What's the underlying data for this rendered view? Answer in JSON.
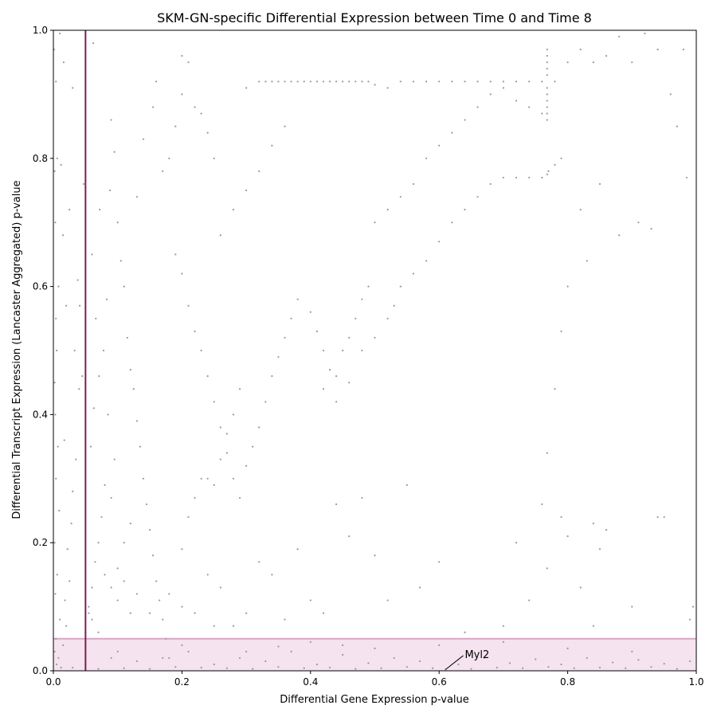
{
  "chart_data": {
    "type": "scatter",
    "title": "SKM-GN-specific Differential Expression between Time 0 and Time 8",
    "xlabel": "Differential Gene Expression p-value",
    "ylabel": "Differential Transcript Expression (Lancaster Aggregated) p-value",
    "xlim": [
      0,
      1
    ],
    "ylim": [
      0,
      1
    ],
    "xticks": [
      {
        "value": 0.0,
        "label": "0.0"
      },
      {
        "value": 0.2,
        "label": "0.2"
      },
      {
        "value": 0.4,
        "label": "0.4"
      },
      {
        "value": 0.6,
        "label": "0.6"
      },
      {
        "value": 0.8,
        "label": "0.8"
      },
      {
        "value": 1.0,
        "label": "1.0"
      }
    ],
    "yticks": [
      {
        "value": 0.0,
        "label": "0.0"
      },
      {
        "value": 0.2,
        "label": "0.2"
      },
      {
        "value": 0.4,
        "label": "0.4"
      },
      {
        "value": 0.6,
        "label": "0.6"
      },
      {
        "value": 0.8,
        "label": "0.8"
      },
      {
        "value": 1.0,
        "label": "1.0"
      }
    ],
    "grid": false,
    "point_color": "#999999",
    "threshold_line": {
      "axis": "x",
      "value": 0.05,
      "color": "#7b1f4f"
    },
    "threshold_band": {
      "axis": "y",
      "from": 0.0,
      "to": 0.05,
      "fill": "#f5e3ef",
      "edge": "#d9a6c6"
    },
    "annotations": [
      {
        "label": "Myl2",
        "x": 0.61,
        "y": 0.002,
        "text_x": 0.64,
        "text_y": 0.02
      }
    ],
    "points": [
      [
        0.005,
        0.01
      ],
      [
        0.002,
        0.03
      ],
      [
        0.008,
        0.02
      ],
      [
        0.004,
        0.05
      ],
      [
        0.01,
        0.08
      ],
      [
        0.003,
        0.12
      ],
      [
        0.006,
        0.15
      ],
      [
        0.002,
        0.2
      ],
      [
        0.009,
        0.25
      ],
      [
        0.004,
        0.3
      ],
      [
        0.007,
        0.35
      ],
      [
        0.003,
        0.4
      ],
      [
        0.002,
        0.45
      ],
      [
        0.005,
        0.5
      ],
      [
        0.004,
        0.55
      ],
      [
        0.008,
        0.6
      ],
      [
        0.003,
        0.7
      ],
      [
        0.002,
        0.78
      ],
      [
        0.006,
        0.8
      ],
      [
        0.004,
        0.92
      ],
      [
        0.001,
        0.97
      ],
      [
        0.012,
        0.005
      ],
      [
        0.015,
        0.04
      ],
      [
        0.02,
        0.07
      ],
      [
        0.018,
        0.11
      ],
      [
        0.025,
        0.14
      ],
      [
        0.022,
        0.19
      ],
      [
        0.028,
        0.23
      ],
      [
        0.03,
        0.28
      ],
      [
        0.035,
        0.33
      ],
      [
        0.017,
        0.36
      ],
      [
        0.04,
        0.44
      ],
      [
        0.033,
        0.5
      ],
      [
        0.045,
        0.46
      ],
      [
        0.02,
        0.57
      ],
      [
        0.038,
        0.61
      ],
      [
        0.015,
        0.68
      ],
      [
        0.025,
        0.72
      ],
      [
        0.012,
        0.79
      ],
      [
        0.03,
        0.91
      ],
      [
        0.041,
        0.57
      ],
      [
        0.047,
        0.76
      ],
      [
        0.016,
        0.95
      ],
      [
        0.01,
        0.995
      ],
      [
        0.05,
        0.06
      ],
      [
        0.055,
        0.09
      ],
      [
        0.06,
        0.13
      ],
      [
        0.065,
        0.17
      ],
      [
        0.07,
        0.2
      ],
      [
        0.075,
        0.24
      ],
      [
        0.08,
        0.29
      ],
      [
        0.058,
        0.35
      ],
      [
        0.063,
        0.41
      ],
      [
        0.071,
        0.46
      ],
      [
        0.078,
        0.5
      ],
      [
        0.066,
        0.55
      ],
      [
        0.083,
        0.58
      ],
      [
        0.06,
        0.65
      ],
      [
        0.072,
        0.72
      ],
      [
        0.088,
        0.75
      ],
      [
        0.062,
        0.98
      ],
      [
        0.09,
        0.86
      ],
      [
        0.095,
        0.81
      ],
      [
        0.1,
        0.7
      ],
      [
        0.105,
        0.64
      ],
      [
        0.11,
        0.6
      ],
      [
        0.115,
        0.52
      ],
      [
        0.12,
        0.47
      ],
      [
        0.125,
        0.44
      ],
      [
        0.13,
        0.39
      ],
      [
        0.135,
        0.35
      ],
      [
        0.14,
        0.3
      ],
      [
        0.145,
        0.26
      ],
      [
        0.15,
        0.22
      ],
      [
        0.155,
        0.18
      ],
      [
        0.16,
        0.14
      ],
      [
        0.165,
        0.11
      ],
      [
        0.17,
        0.08
      ],
      [
        0.175,
        0.05
      ],
      [
        0.18,
        0.02
      ],
      [
        0.1,
        0.16
      ],
      [
        0.11,
        0.2
      ],
      [
        0.12,
        0.23
      ],
      [
        0.09,
        0.27
      ],
      [
        0.095,
        0.33
      ],
      [
        0.085,
        0.4
      ],
      [
        0.13,
        0.74
      ],
      [
        0.14,
        0.83
      ],
      [
        0.155,
        0.88
      ],
      [
        0.16,
        0.92
      ],
      [
        0.17,
        0.78
      ],
      [
        0.18,
        0.8
      ],
      [
        0.19,
        0.85
      ],
      [
        0.2,
        0.9
      ],
      [
        0.2,
        0.96
      ],
      [
        0.21,
        0.95
      ],
      [
        0.22,
        0.88
      ],
      [
        0.23,
        0.87
      ],
      [
        0.24,
        0.84
      ],
      [
        0.25,
        0.8
      ],
      [
        0.19,
        0.65
      ],
      [
        0.2,
        0.62
      ],
      [
        0.21,
        0.57
      ],
      [
        0.22,
        0.53
      ],
      [
        0.23,
        0.5
      ],
      [
        0.24,
        0.46
      ],
      [
        0.25,
        0.42
      ],
      [
        0.26,
        0.38
      ],
      [
        0.27,
        0.34
      ],
      [
        0.28,
        0.3
      ],
      [
        0.29,
        0.27
      ],
      [
        0.3,
        0.32
      ],
      [
        0.31,
        0.35
      ],
      [
        0.32,
        0.38
      ],
      [
        0.33,
        0.42
      ],
      [
        0.34,
        0.46
      ],
      [
        0.35,
        0.49
      ],
      [
        0.36,
        0.52
      ],
      [
        0.37,
        0.55
      ],
      [
        0.38,
        0.58
      ],
      [
        0.2,
        0.19
      ],
      [
        0.21,
        0.24
      ],
      [
        0.22,
        0.27
      ],
      [
        0.23,
        0.3
      ],
      [
        0.24,
        0.3
      ],
      [
        0.25,
        0.29
      ],
      [
        0.26,
        0.33
      ],
      [
        0.27,
        0.37
      ],
      [
        0.28,
        0.4
      ],
      [
        0.29,
        0.44
      ],
      [
        0.26,
        0.68
      ],
      [
        0.28,
        0.72
      ],
      [
        0.3,
        0.75
      ],
      [
        0.32,
        0.78
      ],
      [
        0.34,
        0.82
      ],
      [
        0.36,
        0.85
      ],
      [
        0.3,
        0.91
      ],
      [
        0.32,
        0.92
      ],
      [
        0.33,
        0.92
      ],
      [
        0.34,
        0.92
      ],
      [
        0.35,
        0.92
      ],
      [
        0.36,
        0.92
      ],
      [
        0.37,
        0.92
      ],
      [
        0.38,
        0.92
      ],
      [
        0.39,
        0.92
      ],
      [
        0.4,
        0.92
      ],
      [
        0.41,
        0.92
      ],
      [
        0.42,
        0.92
      ],
      [
        0.43,
        0.92
      ],
      [
        0.44,
        0.92
      ],
      [
        0.45,
        0.92
      ],
      [
        0.46,
        0.92
      ],
      [
        0.47,
        0.92
      ],
      [
        0.48,
        0.92
      ],
      [
        0.49,
        0.92
      ],
      [
        0.5,
        0.915
      ],
      [
        0.52,
        0.91
      ],
      [
        0.54,
        0.92
      ],
      [
        0.56,
        0.92
      ],
      [
        0.58,
        0.92
      ],
      [
        0.6,
        0.92
      ],
      [
        0.62,
        0.92
      ],
      [
        0.64,
        0.92
      ],
      [
        0.66,
        0.92
      ],
      [
        0.68,
        0.92
      ],
      [
        0.7,
        0.92
      ],
      [
        0.72,
        0.92
      ],
      [
        0.74,
        0.92
      ],
      [
        0.76,
        0.92
      ],
      [
        0.78,
        0.92
      ],
      [
        0.4,
        0.56
      ],
      [
        0.41,
        0.53
      ],
      [
        0.42,
        0.5
      ],
      [
        0.43,
        0.47
      ],
      [
        0.44,
        0.46
      ],
      [
        0.45,
        0.5
      ],
      [
        0.46,
        0.52
      ],
      [
        0.47,
        0.55
      ],
      [
        0.48,
        0.58
      ],
      [
        0.49,
        0.6
      ],
      [
        0.42,
        0.44
      ],
      [
        0.44,
        0.42
      ],
      [
        0.46,
        0.45
      ],
      [
        0.48,
        0.5
      ],
      [
        0.5,
        0.52
      ],
      [
        0.52,
        0.55
      ],
      [
        0.53,
        0.57
      ],
      [
        0.54,
        0.6
      ],
      [
        0.56,
        0.62
      ],
      [
        0.58,
        0.64
      ],
      [
        0.6,
        0.67
      ],
      [
        0.62,
        0.7
      ],
      [
        0.64,
        0.72
      ],
      [
        0.66,
        0.74
      ],
      [
        0.68,
        0.76
      ],
      [
        0.7,
        0.77
      ],
      [
        0.72,
        0.77
      ],
      [
        0.74,
        0.77
      ],
      [
        0.76,
        0.77
      ],
      [
        0.77,
        0.78
      ],
      [
        0.78,
        0.79
      ],
      [
        0.79,
        0.8
      ],
      [
        0.5,
        0.7
      ],
      [
        0.52,
        0.72
      ],
      [
        0.54,
        0.74
      ],
      [
        0.56,
        0.76
      ],
      [
        0.58,
        0.8
      ],
      [
        0.6,
        0.82
      ],
      [
        0.62,
        0.84
      ],
      [
        0.64,
        0.86
      ],
      [
        0.66,
        0.88
      ],
      [
        0.68,
        0.9
      ],
      [
        0.7,
        0.91
      ],
      [
        0.72,
        0.89
      ],
      [
        0.74,
        0.88
      ],
      [
        0.76,
        0.87
      ],
      [
        0.768,
        0.86
      ],
      [
        0.768,
        0.87
      ],
      [
        0.768,
        0.88
      ],
      [
        0.768,
        0.89
      ],
      [
        0.768,
        0.9
      ],
      [
        0.768,
        0.91
      ],
      [
        0.768,
        0.93
      ],
      [
        0.768,
        0.94
      ],
      [
        0.768,
        0.95
      ],
      [
        0.768,
        0.96
      ],
      [
        0.768,
        0.97
      ],
      [
        0.768,
        0.775
      ],
      [
        0.768,
        0.34
      ],
      [
        0.768,
        0.16
      ],
      [
        0.8,
        0.95
      ],
      [
        0.82,
        0.97
      ],
      [
        0.84,
        0.95
      ],
      [
        0.86,
        0.96
      ],
      [
        0.88,
        0.99
      ],
      [
        0.9,
        0.95
      ],
      [
        0.92,
        0.995
      ],
      [
        0.94,
        0.97
      ],
      [
        0.96,
        0.9
      ],
      [
        0.98,
        0.97
      ],
      [
        0.85,
        0.76
      ],
      [
        0.88,
        0.68
      ],
      [
        0.91,
        0.7
      ],
      [
        0.93,
        0.69
      ],
      [
        0.97,
        0.85
      ],
      [
        0.985,
        0.77
      ],
      [
        0.8,
        0.6
      ],
      [
        0.79,
        0.53
      ],
      [
        0.82,
        0.72
      ],
      [
        0.83,
        0.64
      ],
      [
        0.78,
        0.44
      ],
      [
        0.79,
        0.24
      ],
      [
        0.8,
        0.21
      ],
      [
        0.82,
        0.13
      ],
      [
        0.84,
        0.23
      ],
      [
        0.86,
        0.22
      ],
      [
        0.9,
        0.1
      ],
      [
        0.94,
        0.24
      ],
      [
        0.95,
        0.24
      ],
      [
        0.99,
        0.08
      ],
      [
        0.995,
        0.1
      ],
      [
        0.85,
        0.19
      ],
      [
        0.84,
        0.07
      ],
      [
        0.76,
        0.26
      ],
      [
        0.74,
        0.11
      ],
      [
        0.72,
        0.2
      ],
      [
        0.7,
        0.07
      ],
      [
        0.64,
        0.06
      ],
      [
        0.6,
        0.17
      ],
      [
        0.57,
        0.13
      ],
      [
        0.55,
        0.29
      ],
      [
        0.52,
        0.11
      ],
      [
        0.5,
        0.18
      ],
      [
        0.48,
        0.27
      ],
      [
        0.46,
        0.21
      ],
      [
        0.44,
        0.26
      ],
      [
        0.42,
        0.09
      ],
      [
        0.4,
        0.11
      ],
      [
        0.38,
        0.19
      ],
      [
        0.36,
        0.08
      ],
      [
        0.34,
        0.15
      ],
      [
        0.32,
        0.17
      ],
      [
        0.3,
        0.09
      ],
      [
        0.28,
        0.07
      ],
      [
        0.26,
        0.13
      ],
      [
        0.25,
        0.07
      ],
      [
        0.24,
        0.15
      ],
      [
        0.22,
        0.09
      ],
      [
        0.2,
        0.1
      ],
      [
        0.18,
        0.12
      ],
      [
        0.15,
        0.09
      ],
      [
        0.13,
        0.12
      ],
      [
        0.12,
        0.09
      ],
      [
        0.11,
        0.14
      ],
      [
        0.1,
        0.11
      ],
      [
        0.09,
        0.13
      ],
      [
        0.08,
        0.15
      ],
      [
        0.07,
        0.06
      ],
      [
        0.06,
        0.08
      ],
      [
        0.055,
        0.1
      ],
      [
        0.03,
        0.005
      ],
      [
        0.05,
        0.01
      ],
      [
        0.07,
        0.003
      ],
      [
        0.09,
        0.02
      ],
      [
        0.11,
        0.004
      ],
      [
        0.13,
        0.015
      ],
      [
        0.15,
        0.003
      ],
      [
        0.17,
        0.02
      ],
      [
        0.19,
        0.006
      ],
      [
        0.21,
        0.03
      ],
      [
        0.23,
        0.005
      ],
      [
        0.25,
        0.01
      ],
      [
        0.27,
        0.004
      ],
      [
        0.29,
        0.02
      ],
      [
        0.31,
        0.003
      ],
      [
        0.33,
        0.015
      ],
      [
        0.35,
        0.006
      ],
      [
        0.37,
        0.03
      ],
      [
        0.39,
        0.004
      ],
      [
        0.41,
        0.01
      ],
      [
        0.43,
        0.005
      ],
      [
        0.45,
        0.025
      ],
      [
        0.47,
        0.003
      ],
      [
        0.49,
        0.012
      ],
      [
        0.51,
        0.004
      ],
      [
        0.53,
        0.02
      ],
      [
        0.55,
        0.006
      ],
      [
        0.57,
        0.015
      ],
      [
        0.59,
        0.004
      ],
      [
        0.61,
        0.002
      ],
      [
        0.63,
        0.01
      ],
      [
        0.65,
        0.003
      ],
      [
        0.67,
        0.02
      ],
      [
        0.69,
        0.005
      ],
      [
        0.71,
        0.012
      ],
      [
        0.73,
        0.004
      ],
      [
        0.75,
        0.018
      ],
      [
        0.77,
        0.006
      ],
      [
        0.79,
        0.01
      ],
      [
        0.81,
        0.004
      ],
      [
        0.83,
        0.02
      ],
      [
        0.85,
        0.005
      ],
      [
        0.87,
        0.013
      ],
      [
        0.89,
        0.004
      ],
      [
        0.91,
        0.017
      ],
      [
        0.93,
        0.006
      ],
      [
        0.95,
        0.011
      ],
      [
        0.97,
        0.003
      ],
      [
        0.99,
        0.015
      ],
      [
        0.6,
        0.04
      ],
      [
        0.5,
        0.035
      ],
      [
        0.4,
        0.045
      ],
      [
        0.3,
        0.03
      ],
      [
        0.2,
        0.04
      ],
      [
        0.1,
        0.03
      ],
      [
        0.7,
        0.045
      ],
      [
        0.8,
        0.035
      ],
      [
        0.9,
        0.03
      ],
      [
        0.45,
        0.04
      ],
      [
        0.35,
        0.038
      ]
    ]
  }
}
